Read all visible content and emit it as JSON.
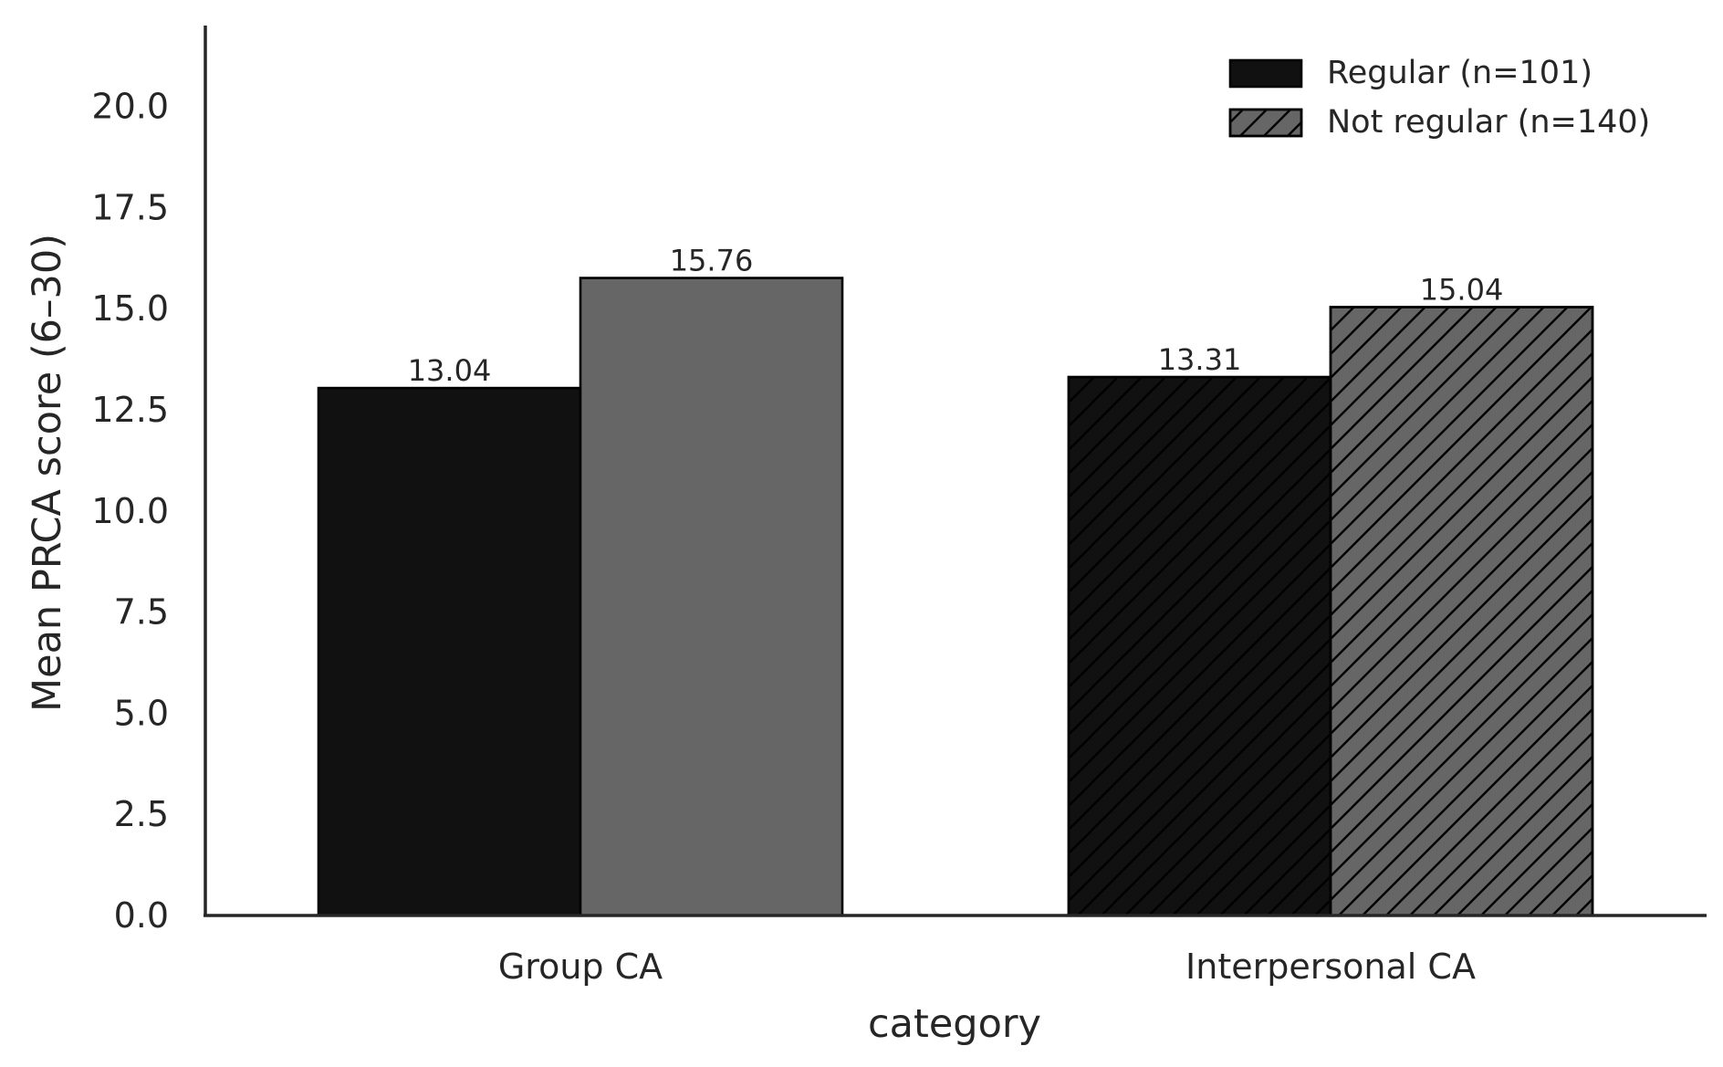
{
  "chart_data": {
    "type": "bar",
    "title": "",
    "xlabel": "category",
    "ylabel": "Mean PRCA score (6–30)",
    "categories": [
      "Group CA",
      "Interpersonal CA"
    ],
    "series": [
      {
        "name": "Regular (n=101)",
        "values": [
          13.04,
          13.31
        ],
        "labels": [
          "13.04",
          "13.31"
        ],
        "color": "#111111"
      },
      {
        "name": "Not regular (n=140)",
        "values": [
          15.76,
          15.04
        ],
        "labels": [
          "15.76",
          "15.04"
        ],
        "color": "#666666"
      }
    ],
    "hatched_categories": [
      "Interpersonal CA"
    ],
    "ylim": [
      0,
      22
    ],
    "yticks": [
      0,
      2.5,
      5,
      7.5,
      10,
      12.5,
      15,
      17.5,
      20
    ],
    "ytick_labels": [
      "0.0",
      "2.5",
      "5.0",
      "7.5",
      "10.0",
      "12.5",
      "15.0",
      "17.5",
      "20.0"
    ],
    "grid": false,
    "legend_position": "top-right",
    "legend_hatched": [
      "Not regular (n=140)"
    ]
  }
}
